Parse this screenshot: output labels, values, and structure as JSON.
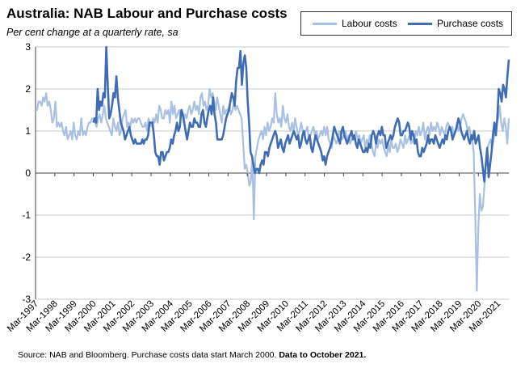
{
  "chart_data": {
    "type": "line",
    "title": "Australia: NAB Labour and Purchase costs",
    "subtitle": "Per cent change at a quarterly rate, sa",
    "ylim": [
      -3,
      3
    ],
    "yticks": [
      -3,
      -2,
      -1,
      0,
      1,
      2,
      3
    ],
    "xlim": [
      "1997-03",
      "2021-10"
    ],
    "xtick_labels": [
      "Mar-1997",
      "Mar-1998",
      "Mar-1999",
      "Mar-2000",
      "Mar-2001",
      "Mar-2002",
      "Mar-2003",
      "Mar-2004",
      "Mar-2005",
      "Mar-2006",
      "Mar-2007",
      "Mar-2008",
      "Mar-2009",
      "Mar-2010",
      "Mar-2011",
      "Mar-2012",
      "Mar-2013",
      "Mar-2014",
      "Mar-2015",
      "Mar-2016",
      "Mar-2017",
      "Mar-2018",
      "Mar-2019",
      "Mar-2020",
      "Mar-2021"
    ],
    "grid": true,
    "legend_position": "top-right",
    "series": [
      {
        "name": "Labour costs",
        "color": "#a7c0e3",
        "start": "1997-03",
        "values": [
          1.5,
          1.5,
          1.7,
          1.7,
          1.6,
          1.8,
          1.7,
          1.9,
          1.6,
          1.7,
          1.5,
          1.2,
          1.3,
          1.7,
          1.1,
          1.2,
          1.1,
          1.2,
          1.0,
          0.9,
          1.1,
          0.8,
          0.9,
          1.0,
          0.8,
          1.2,
          0.9,
          0.8,
          1.0,
          0.9,
          1.3,
          0.9,
          1.0,
          0.9,
          1.1,
          1.2,
          1.2,
          1.3,
          1.3,
          1.2,
          1.1,
          1.3,
          1.4,
          1.2,
          1.4,
          1.6,
          1.3,
          1.2,
          1.1,
          1.0,
          0.9,
          1.3,
          1.1,
          1.0,
          1.2,
          0.9,
          1.0,
          1.3,
          1.4,
          1.5,
          1.1,
          1.2,
          1.1,
          1.3,
          1.2,
          1.3,
          1.2,
          1.3,
          1.3,
          1.2,
          1.1,
          1.1,
          1.2,
          1.0,
          1.3,
          1.2,
          1.1,
          1.3,
          1.2,
          1.4,
          1.2,
          1.6,
          1.5,
          1.3,
          1.3,
          1.5,
          1.4,
          1.5,
          1.2,
          1.7,
          1.4,
          1.6,
          1.3,
          1.4,
          1.5,
          1.3,
          1.5,
          1.2,
          1.4,
          1.3,
          1.5,
          1.6,
          1.4,
          1.5,
          1.7,
          1.5,
          1.6,
          1.4,
          1.8,
          1.9,
          1.6,
          1.7,
          1.5,
          1.6,
          2.0,
          1.8,
          1.9,
          1.7,
          1.5,
          1.8,
          1.6,
          1.4,
          1.2,
          1.6,
          1.4,
          1.5,
          1.5,
          1.6,
          1.4,
          1.5,
          1.7,
          1.5,
          1.6,
          1.5,
          1.4,
          1.3,
          0.7,
          0.1,
          0.2,
          0.0,
          -0.3,
          -0.2,
          0.4,
          -1.1,
          0.4,
          0.6,
          0.8,
          0.9,
          1.0,
          0.8,
          1.1,
          0.9,
          1.2,
          1.0,
          1.1,
          1.3,
          1.2,
          1.9,
          1.4,
          1.2,
          1.3,
          1.1,
          1.6,
          1.3,
          1.2,
          1.4,
          1.1,
          1.0,
          1.2,
          1.0,
          1.3,
          1.1,
          0.9,
          1.0,
          1.2,
          1.0,
          0.9,
          1.0,
          1.1,
          0.8,
          0.9,
          1.0,
          1.1,
          0.9,
          1.0,
          0.8,
          0.9,
          1.0,
          0.9,
          1.1,
          0.9,
          1.1,
          0.8,
          0.7,
          0.6,
          0.9,
          0.8,
          0.7,
          0.8,
          1.0,
          0.9,
          0.8,
          0.9,
          1.0,
          0.8,
          0.9,
          0.7,
          0.8,
          0.8,
          0.9,
          1.0,
          0.8,
          0.9,
          0.7,
          0.8,
          0.9,
          0.6,
          0.8,
          0.7,
          0.9,
          0.7,
          0.5,
          0.4,
          0.7,
          0.6,
          0.8,
          0.7,
          0.8,
          0.6,
          0.5,
          0.4,
          0.7,
          0.5,
          0.8,
          0.6,
          0.6,
          0.7,
          0.5,
          0.6,
          0.8,
          0.7,
          0.6,
          0.9,
          0.7,
          0.8,
          0.9,
          0.7,
          0.8,
          0.7,
          1.0,
          0.9,
          1.1,
          0.9,
          1.0,
          1.2,
          0.8,
          1.0,
          1.1,
          0.9,
          1.2,
          1.0,
          1.1,
          1.0,
          1.2,
          1.1,
          0.9,
          1.1,
          1.0,
          0.9,
          1.1,
          1.2,
          1.1,
          1.0,
          1.1,
          0.9,
          1.0,
          1.2,
          1.0,
          1.1,
          1.3,
          1.4,
          1.3,
          1.2,
          1.0,
          1.1,
          0.9,
          0.8,
          0.5,
          -1.0,
          -2.8,
          -1.3,
          -0.5,
          -0.9,
          -0.8,
          -0.3,
          0.2,
          0.6,
          0.7,
          0.8,
          0.6,
          0.8,
          1.0,
          1.2,
          1.3,
          1.6,
          1.2,
          1.0,
          1.3,
          1.1,
          0.7,
          1.3
        ]
      },
      {
        "name": "Purchase costs",
        "color": "#3f6db5",
        "start": "2000-03",
        "values": [
          1.2,
          1.3,
          1.2,
          2.0,
          1.5,
          1.7,
          1.6,
          1.9,
          1.8,
          3.0,
          2.1,
          1.3,
          1.4,
          1.6,
          1.9,
          1.8,
          2.3,
          1.8,
          1.5,
          1.2,
          1.1,
          1.0,
          0.8,
          0.9,
          1.0,
          1.1,
          0.9,
          0.8,
          0.7,
          0.8,
          0.7,
          0.7,
          0.7,
          0.7,
          0.8,
          0.7,
          0.8,
          0.8,
          0.9,
          1.2,
          1.2,
          1.2,
          0.9,
          0.5,
          0.4,
          0.4,
          0.2,
          0.5,
          0.5,
          0.3,
          0.4,
          0.5,
          0.5,
          0.6,
          0.8,
          0.7,
          0.9,
          1.0,
          1.2,
          1.0,
          1.1,
          1.5,
          1.4,
          1.2,
          1.0,
          0.8,
          1.0,
          1.2,
          1.1,
          1.1,
          1.3,
          1.2,
          1.2,
          1.1,
          1.1,
          1.4,
          1.5,
          1.2,
          1.1,
          1.3,
          1.5,
          1.6,
          1.4,
          1.8,
          1.4,
          1.2,
          0.8,
          0.8,
          0.8,
          0.8,
          0.9,
          1.1,
          1.3,
          1.4,
          1.5,
          1.7,
          1.9,
          1.8,
          1.6,
          2.2,
          2.5,
          2.5,
          2.9,
          2.1,
          2.6,
          2.8,
          2.5,
          1.7,
          1.2,
          0.5,
          0.4,
          0.2,
          0.0,
          0.1,
          0.1,
          0.0,
          0.2,
          0.3,
          0.2,
          0.5,
          0.5,
          0.4,
          0.6,
          0.7,
          0.8,
          0.9,
          1.0,
          0.9,
          0.6,
          0.7,
          0.8,
          0.6,
          0.5,
          0.7,
          0.8,
          0.9,
          0.7,
          0.8,
          0.9,
          1.0,
          0.9,
          0.8,
          0.9,
          0.6,
          0.7,
          0.9,
          1.0,
          0.8,
          0.7,
          0.8,
          0.9,
          0.6,
          0.5,
          0.7,
          0.9,
          0.8,
          0.7,
          0.6,
          0.5,
          0.3,
          0.4,
          0.2,
          0.4,
          0.5,
          0.6,
          0.7,
          0.9,
          1.1,
          1.0,
          0.9,
          0.8,
          0.7,
          1.0,
          1.1,
          0.9,
          0.8,
          0.7,
          0.8,
          0.9,
          1.0,
          0.8,
          0.9,
          0.7,
          0.6,
          0.8,
          0.7,
          0.6,
          0.5,
          0.5,
          0.6,
          0.5,
          0.7,
          0.6,
          0.9,
          1.0,
          0.9,
          0.7,
          0.9,
          1.0,
          0.9,
          1.1,
          0.9,
          0.9,
          0.6,
          0.7,
          0.8,
          0.9,
          0.8,
          0.9,
          1.1,
          1.2,
          1.3,
          1.2,
          0.9,
          0.9,
          1.0,
          1.0,
          1.1,
          1.2,
          1.1,
          0.8,
          1.0,
          0.9,
          0.7,
          0.8,
          0.5,
          0.4,
          0.4,
          0.6,
          0.5,
          0.6,
          0.7,
          0.9,
          0.7,
          0.8,
          0.8,
          0.7,
          0.9,
          0.8,
          0.7,
          0.6,
          0.7,
          0.8,
          0.7,
          0.9,
          0.8,
          1.0,
          1.1,
          1.0,
          0.8,
          0.9,
          1.0,
          1.1,
          1.3,
          1.2,
          1.0,
          0.9,
          0.8,
          0.9,
          1.0,
          0.8,
          0.7,
          0.9,
          0.8,
          1.0,
          0.7,
          0.8,
          0.9,
          0.6,
          0.4,
          0.1,
          -0.2,
          0.2,
          0.6,
          -0.1,
          0.2,
          0.5,
          0.9,
          1.2,
          0.9,
          1.3,
          2.0,
          1.9,
          1.7,
          2.1,
          2.0,
          1.8,
          2.3,
          2.7
        ]
      }
    ]
  },
  "source": {
    "text": "Source: NAB and Bloomberg.  Purchase costs data start March 2000.",
    "bold": "Data to October 2021."
  }
}
